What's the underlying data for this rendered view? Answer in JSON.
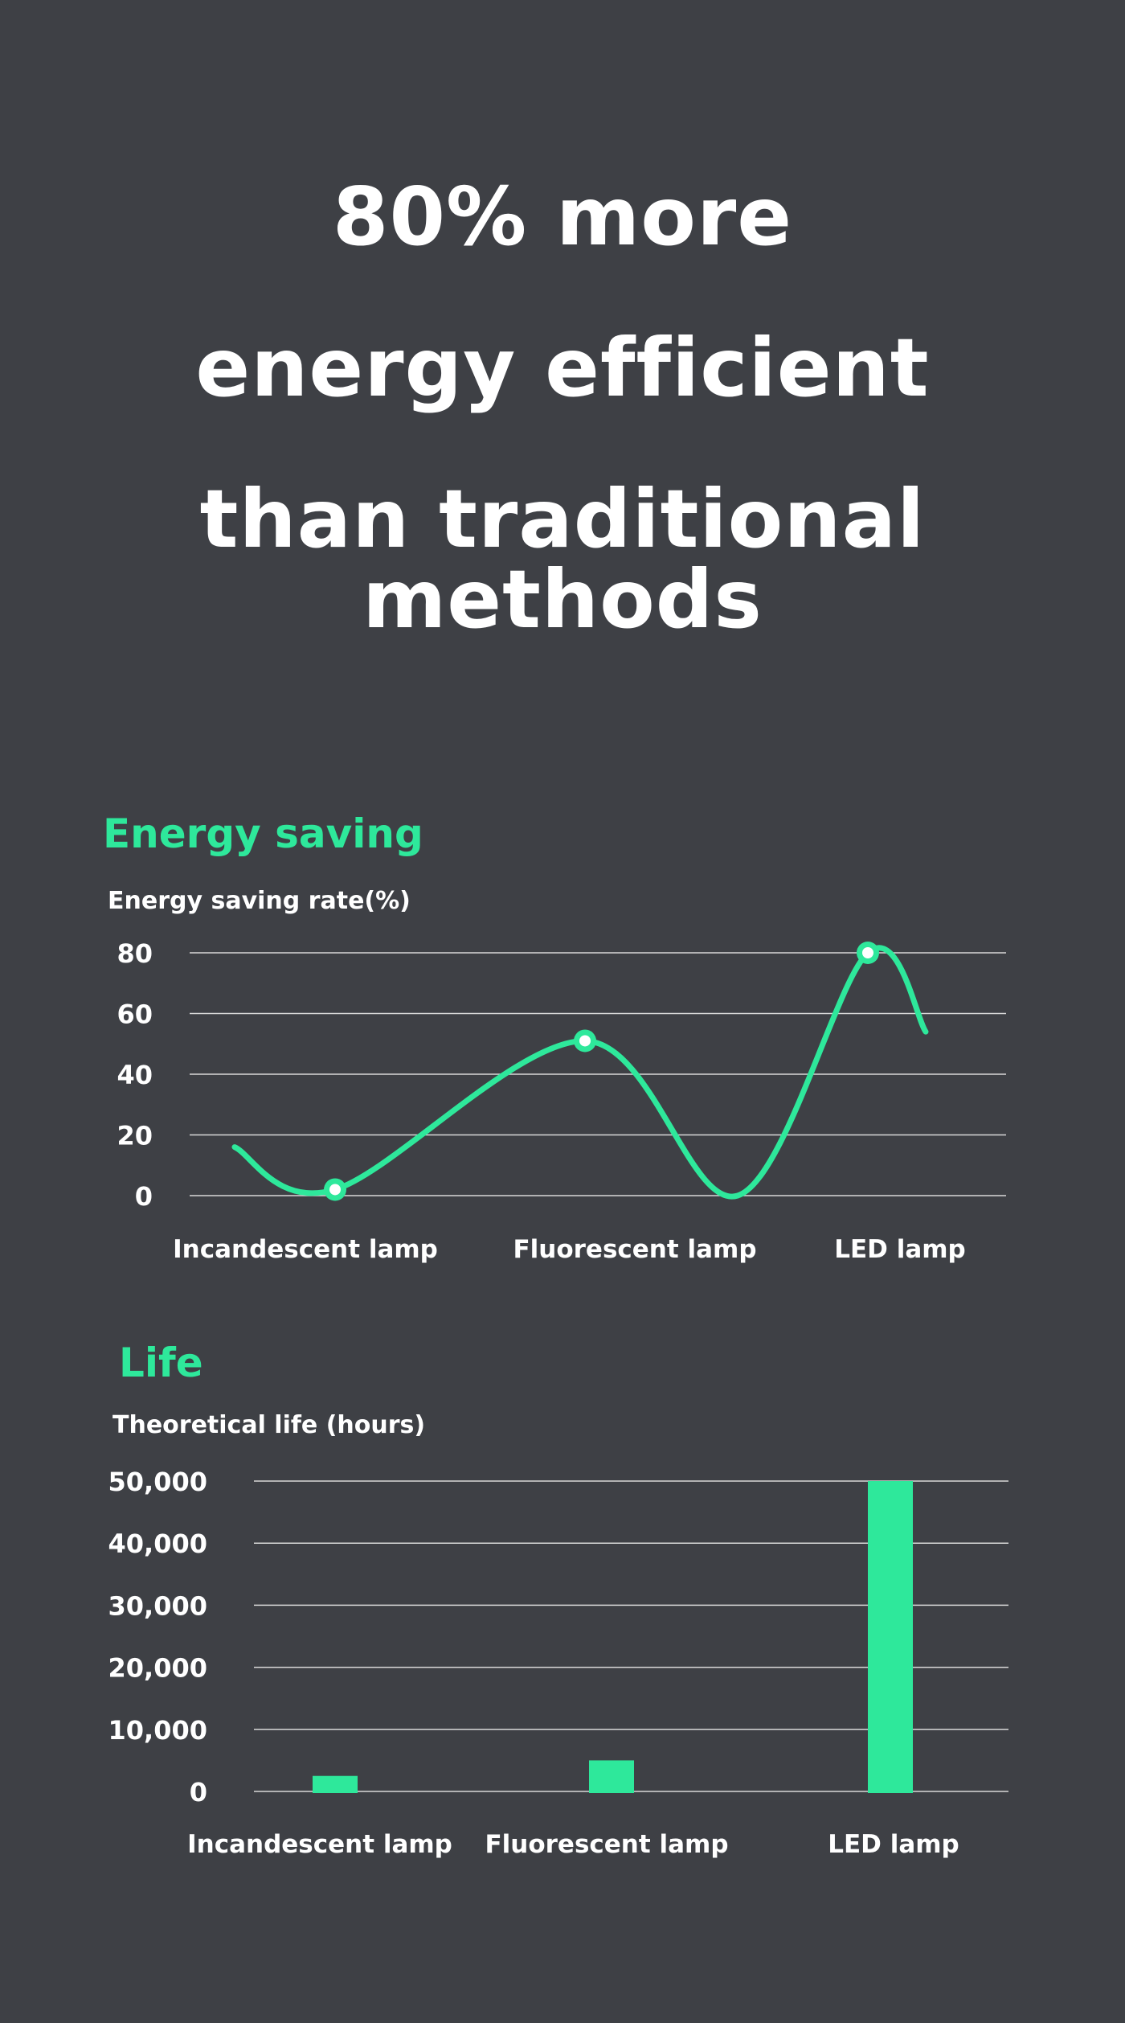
{
  "headline": {
    "line1": "80% more",
    "line2": "energy efficient",
    "line3": "than traditional methods"
  },
  "colors": {
    "background": "#3e4045",
    "accent": "#2ee89b",
    "text": "#ffffff",
    "grid": "#d8d8d8"
  },
  "chart_data": [
    {
      "type": "line",
      "title": "Energy saving",
      "ylabel": "Energy saving rate(%)",
      "xlabel": "",
      "categories": [
        "Incandescent lamp",
        "Fluorescent lamp",
        "LED lamp"
      ],
      "values": [
        2,
        51,
        80
      ],
      "yticks": [
        0,
        20,
        40,
        60,
        80
      ],
      "ylim": [
        0,
        80
      ],
      "grid": true,
      "smooth": true
    },
    {
      "type": "bar",
      "title": "Life",
      "ylabel": "Theoretical life (hours)",
      "xlabel": "",
      "categories": [
        "Incandescent lamp",
        "Fluorescent lamp",
        "LED lamp"
      ],
      "values": [
        2500,
        5000,
        50000
      ],
      "yticks": [
        "0",
        "10,000",
        "20,000",
        "30,000",
        "40,000",
        "50,000"
      ],
      "ylim": [
        0,
        50000
      ],
      "grid": true
    }
  ]
}
